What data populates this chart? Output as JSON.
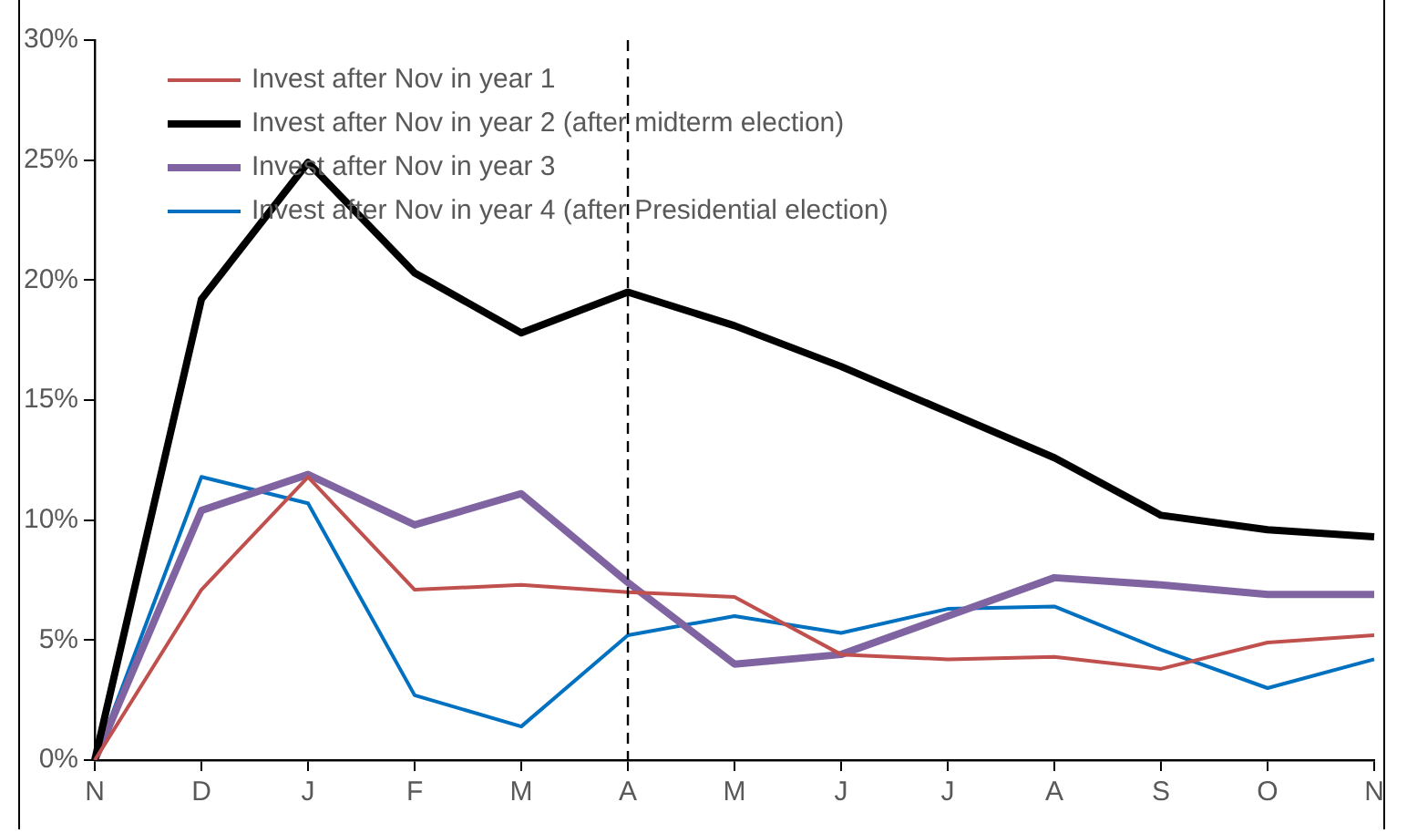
{
  "chart_data": {
    "type": "line",
    "categories": [
      "N",
      "D",
      "J",
      "F",
      "M",
      "A",
      "M",
      "J",
      "J",
      "A",
      "S",
      "O",
      "N"
    ],
    "series": [
      {
        "name": "Invest after Nov in year 1",
        "color": "#c0504d",
        "values": [
          0,
          7.1,
          11.8,
          7.1,
          7.3,
          7.0,
          6.8,
          4.4,
          4.2,
          4.3,
          3.8,
          4.9,
          5.2
        ]
      },
      {
        "name": "Invest after Nov in year 2 (after midterm election)",
        "color": "#000000",
        "values": [
          0,
          19.2,
          24.9,
          20.3,
          17.8,
          19.5,
          18.1,
          16.4,
          14.5,
          12.6,
          10.2,
          9.6,
          9.3
        ]
      },
      {
        "name": "Invest after Nov in year 3",
        "color": "#8064a2",
        "values": [
          0,
          10.4,
          11.9,
          9.8,
          11.1,
          7.4,
          4.0,
          4.4,
          6.0,
          7.6,
          7.3,
          6.9,
          6.9
        ]
      },
      {
        "name": "Invest after Nov in year 4 (after Presidential election)",
        "color": "#0070c0",
        "values": [
          0,
          11.8,
          10.7,
          2.7,
          1.4,
          5.2,
          6.0,
          5.3,
          6.3,
          6.4,
          4.6,
          3.0,
          4.2
        ]
      }
    ],
    "ylim": [
      0,
      30
    ],
    "yticks": [
      {
        "value": 0,
        "label": "0%"
      },
      {
        "value": 5,
        "label": "5%"
      },
      {
        "value": 10,
        "label": "10%"
      },
      {
        "value": 15,
        "label": "15%"
      },
      {
        "value": 20,
        "label": "20%"
      },
      {
        "value": 25,
        "label": "25%"
      },
      {
        "value": 30,
        "label": "30%"
      }
    ],
    "ref_lines": [
      {
        "axis": "x",
        "value": "A",
        "color": "#000000",
        "line_style": "dashed"
      }
    ],
    "grid": false,
    "legend": "top left",
    "marker": "none",
    "line_style": "solid"
  }
}
